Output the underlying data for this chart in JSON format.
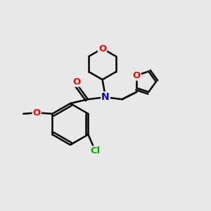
{
  "bg_color": "#e8e8e8",
  "bond_color": "#000000",
  "atom_colors": {
    "O": "#ff0000",
    "N": "#0000cc",
    "Cl": "#00aa00",
    "C": "#000000"
  },
  "figsize": [
    3.0,
    3.0
  ],
  "dpi": 100
}
